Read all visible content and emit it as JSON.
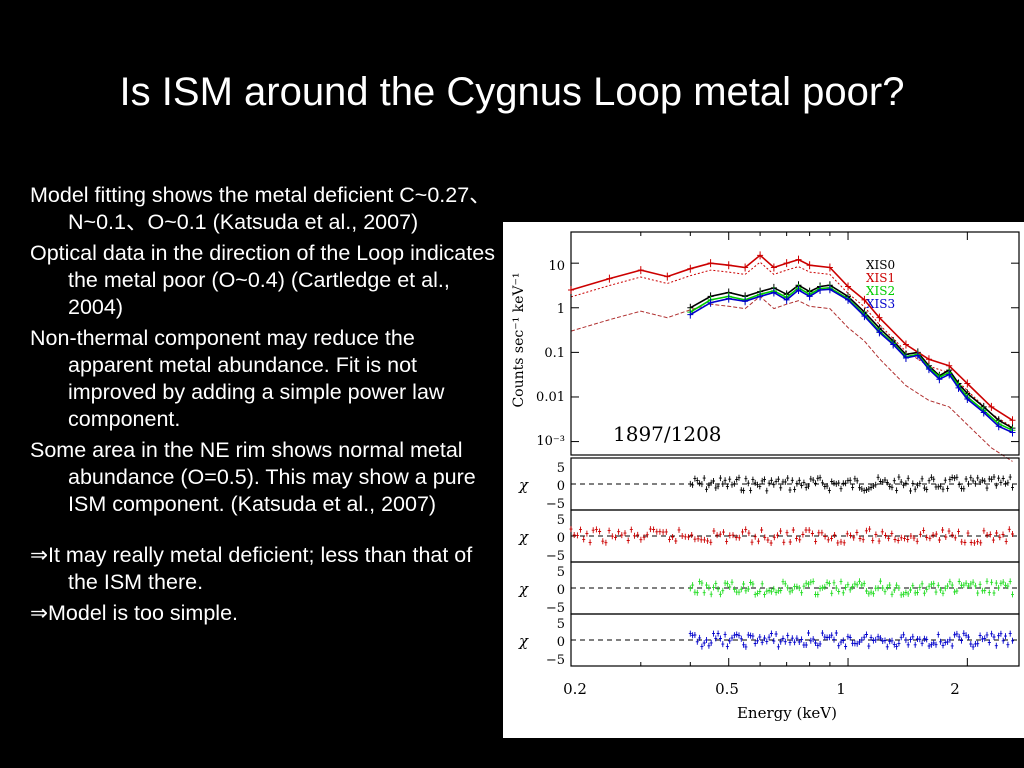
{
  "slide": {
    "title": "Is ISM around the Cygnus Loop metal poor?",
    "bullets": [
      "Model fitting shows the metal deficient C~0.27、N~0.1、O~0.1 (Katsuda et al., 2007)",
      "Optical data in the direction of the Loop indicates the metal poor (O~0.4) (Cartledge et al., 2004)",
      "Non-thermal component may reduce the apparent metal abundance. Fit is not improved by adding a simple power law component.",
      "Some area in the NE rim shows normal metal abundance (O=0.5). This may show a pure ISM component. (Katsuda et al., 2007)",
      "⇒It may really metal deficient; less than that of the ISM there.",
      "⇒Model is too simple."
    ]
  },
  "chart_data": {
    "type": "scatter",
    "xlabel": "Energy (keV)",
    "ylabel": "Counts sec⁻¹ keV⁻¹",
    "xscale": "log",
    "yscale": "log",
    "xlim": [
      0.2,
      2.7
    ],
    "ylim": [
      0.0005,
      50
    ],
    "xticklabels": [
      "0.2",
      "0.5",
      "1",
      "2"
    ],
    "yticklabels": [
      "10",
      "1",
      "0.1",
      "0.01",
      "10⁻³"
    ],
    "annotation": "1897/1208",
    "residual_ylabel": "χ",
    "residual_ticks": [
      "5",
      "0",
      "−5"
    ],
    "series": [
      {
        "name": "XIS0",
        "color": "#000000",
        "x": [
          0.4,
          0.45,
          0.5,
          0.55,
          0.6,
          0.65,
          0.7,
          0.75,
          0.8,
          0.85,
          0.9,
          1.0,
          1.1,
          1.2,
          1.3,
          1.4,
          1.5,
          1.6,
          1.7,
          1.8,
          1.9,
          2.0,
          2.2,
          2.4,
          2.6
        ],
        "y": [
          1.0,
          1.8,
          2.2,
          1.8,
          2.3,
          2.8,
          2.0,
          3.2,
          2.3,
          3.0,
          3.2,
          1.8,
          0.8,
          0.35,
          0.18,
          0.09,
          0.1,
          0.05,
          0.03,
          0.04,
          0.02,
          0.012,
          0.006,
          0.003,
          0.002
        ]
      },
      {
        "name": "XIS1",
        "color": "#cc0000",
        "x": [
          0.2,
          0.25,
          0.3,
          0.35,
          0.4,
          0.45,
          0.5,
          0.55,
          0.6,
          0.65,
          0.7,
          0.75,
          0.8,
          0.9,
          1.0,
          1.1,
          1.2,
          1.4,
          1.6,
          1.8,
          2.0,
          2.3,
          2.6
        ],
        "y": [
          2.5,
          4.5,
          7.0,
          5.0,
          7.5,
          10.0,
          9.0,
          8.0,
          15.0,
          8.0,
          10.0,
          12.0,
          9.0,
          8.0,
          3.0,
          1.5,
          0.6,
          0.15,
          0.07,
          0.05,
          0.02,
          0.006,
          0.003
        ]
      },
      {
        "name": "XIS2",
        "color": "#00cc00",
        "x": [
          0.4,
          0.45,
          0.5,
          0.55,
          0.6,
          0.65,
          0.7,
          0.75,
          0.8,
          0.85,
          0.9,
          1.0,
          1.1,
          1.2,
          1.3,
          1.4,
          1.5,
          1.6,
          1.7,
          1.8,
          1.9,
          2.0,
          2.2,
          2.4,
          2.6
        ],
        "y": [
          0.8,
          1.5,
          1.8,
          1.5,
          2.0,
          2.4,
          1.7,
          2.8,
          2.0,
          2.7,
          2.8,
          1.6,
          0.7,
          0.3,
          0.16,
          0.08,
          0.09,
          0.045,
          0.028,
          0.035,
          0.018,
          0.01,
          0.005,
          0.0025,
          0.0018
        ]
      },
      {
        "name": "XIS3",
        "color": "#0000cc",
        "x": [
          0.4,
          0.45,
          0.5,
          0.55,
          0.6,
          0.65,
          0.7,
          0.75,
          0.8,
          0.85,
          0.9,
          1.0,
          1.1,
          1.2,
          1.3,
          1.4,
          1.5,
          1.6,
          1.7,
          1.8,
          1.9,
          2.0,
          2.2,
          2.4,
          2.6
        ],
        "y": [
          0.7,
          1.3,
          1.6,
          1.4,
          1.8,
          2.2,
          1.5,
          2.5,
          1.8,
          2.5,
          2.6,
          1.5,
          0.65,
          0.28,
          0.15,
          0.075,
          0.085,
          0.042,
          0.025,
          0.032,
          0.016,
          0.009,
          0.0045,
          0.0022,
          0.0016
        ]
      }
    ]
  }
}
